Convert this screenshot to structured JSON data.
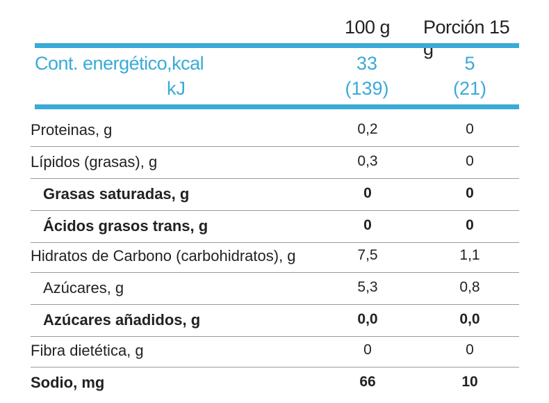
{
  "header": {
    "col1": "100 g",
    "col2": "Porción 15 g"
  },
  "energy": {
    "label": "Cont. energético,kcal",
    "sublabel": "kJ",
    "kcal_100g": "33",
    "kj_100g": "(139)",
    "kcal_portion": "5",
    "kj_portion": "(21)"
  },
  "rows": [
    {
      "label": "Proteinas, g",
      "v1": "0,2",
      "v2": "0"
    },
    {
      "label": "Lípidos (grasas), g",
      "v1": "0,3",
      "v2": "0"
    },
    {
      "label": "Grasas saturadas, g",
      "v1": "0",
      "v2": "0"
    },
    {
      "label": "Ácidos grasos trans, g",
      "v1": "0",
      "v2": "0"
    },
    {
      "label": "Hidratos de Carbono (carbohidratos), g",
      "v1": "7,5",
      "v2": "1,1"
    },
    {
      "label": "Azúcares, g",
      "v1": "5,3",
      "v2": "0,8"
    },
    {
      "label": "Azúcares añadidos, g",
      "v1": "0,0",
      "v2": "0,0"
    },
    {
      "label": "Fibra dietética, g",
      "v1": "0",
      "v2": "0"
    },
    {
      "label": "Sodio, mg",
      "v1": "66",
      "v2": "10"
    }
  ],
  "colors": {
    "accent": "#3aaad7",
    "text": "#222222",
    "divider": "#9a9a9a"
  }
}
